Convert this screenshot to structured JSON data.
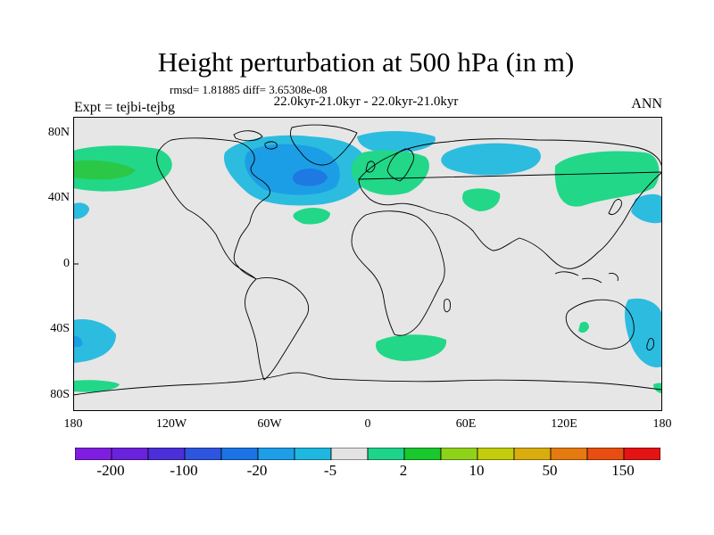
{
  "header": {
    "title": "Height perturbation at 500 hPa (in m)",
    "stats": "rmsd= 1.81885 diff= 3.65308e-08",
    "period": "22.0kyr-21.0kyr - 22.0kyr-21.0kyr",
    "experiment": "Expt = tejbi-tejbg",
    "season": "ANN"
  },
  "axes": {
    "lat_labels": [
      "80N",
      "40N",
      "0",
      "40S",
      "80S"
    ],
    "lon_labels": [
      "180",
      "120W",
      "60W",
      "0",
      "60E",
      "120E",
      "180"
    ]
  },
  "colorbar": {
    "colors": [
      "#7f1ee0",
      "#6a22dc",
      "#4b2fd9",
      "#2d55dd",
      "#1c74e4",
      "#1e9ee6",
      "#1db7df",
      "#e3e3e3",
      "#1ed38a",
      "#19c82c",
      "#8fd21a",
      "#c4cc0e",
      "#d9ad0d",
      "#e57a10",
      "#e84e12",
      "#e51414"
    ],
    "labels": [
      "-200",
      "-100",
      "-20",
      "-5",
      "2",
      "10",
      "50",
      "150"
    ]
  },
  "colors": {
    "background": "#ffffff",
    "map_fill": "#e6e6e6",
    "neg_light": "#2cbce0",
    "neg_mid": "#1c9ee6",
    "neg_dark": "#1e79e3",
    "pos_light": "#22d788",
    "pos_mid": "#2bc848"
  }
}
